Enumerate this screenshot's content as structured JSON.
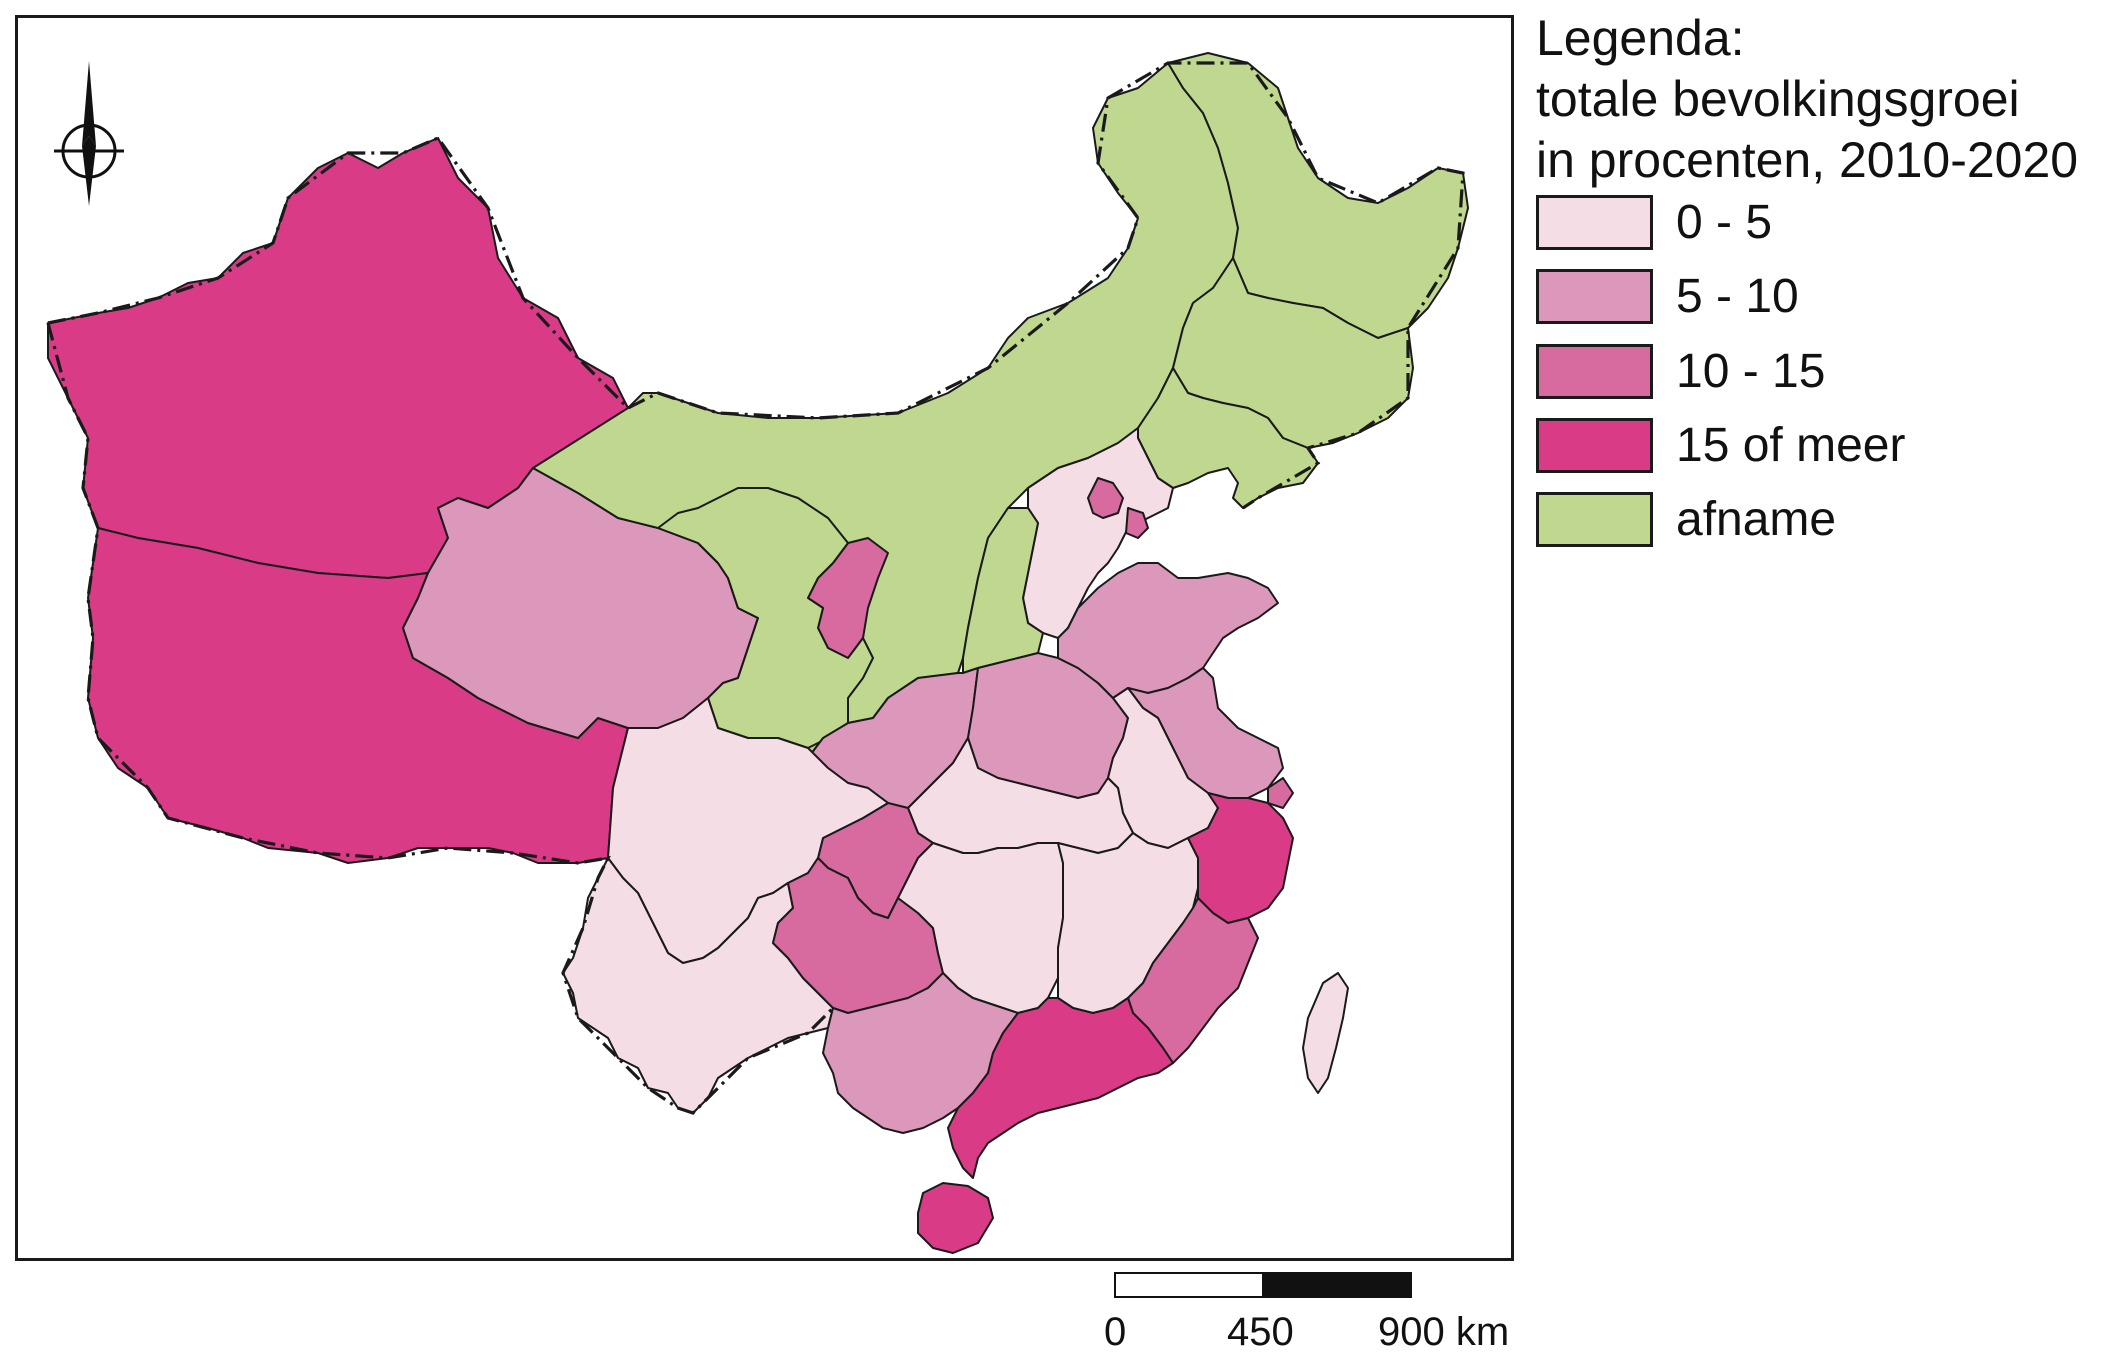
{
  "legend": {
    "title_lines": [
      "Legenda:",
      "totale bevolkingsgroei",
      "in procenten, 2010-2020"
    ],
    "classes": [
      {
        "label": "0 - 5",
        "color": "#f4dde4"
      },
      {
        "label": "5 - 10",
        "color": "#dc98bb"
      },
      {
        "label": "10 - 15",
        "color": "#d76a9e"
      },
      {
        "label": "15 of meer",
        "color": "#d93b86"
      },
      {
        "label": "afname",
        "color": "#bfd78f"
      }
    ]
  },
  "scalebar": {
    "labels": [
      "0",
      "450",
      "900 km"
    ]
  },
  "north_arrow": {
    "icon": "north-arrow-icon"
  },
  "colors": {
    "border": "#1a1a1a",
    "background": "#ffffff"
  }
}
